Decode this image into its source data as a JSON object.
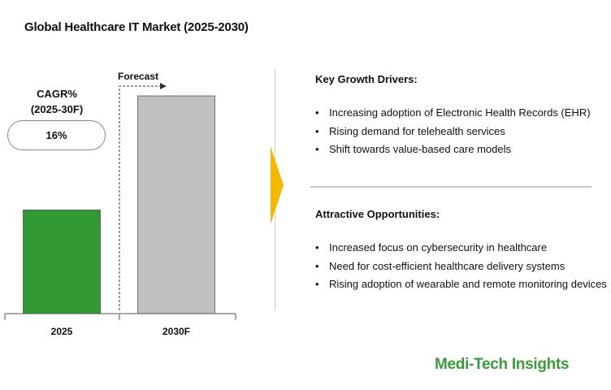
{
  "title": "Global Healthcare IT Market (2025-2030)",
  "chart_data": {
    "type": "bar",
    "categories": [
      "2025",
      "2030F"
    ],
    "values": [
      1.0,
      2.1
    ],
    "colors": [
      "#339933",
      "#c0c0c0"
    ],
    "forecast_label": "Forecast",
    "cagr_label_line1": "CAGR%",
    "cagr_label_line2": "(2025-30F)",
    "cagr_value": "16%",
    "xlabel": "",
    "ylabel": ""
  },
  "drivers": {
    "heading": "Key Growth Drivers:",
    "items": [
      "Increasing adoption of Electronic Health Records (EHR)",
      "Rising demand for telehealth services",
      "Shift towards value-based care models"
    ]
  },
  "opportunities": {
    "heading": "Attractive Opportunities:",
    "items": [
      "Increased focus on cybersecurity in healthcare",
      "Need for cost-efficient healthcare delivery systems",
      "Rising adoption of wearable and remote monitoring devices"
    ]
  },
  "brand": "Medi-Tech Insights",
  "arrow_color": "#f5b800"
}
